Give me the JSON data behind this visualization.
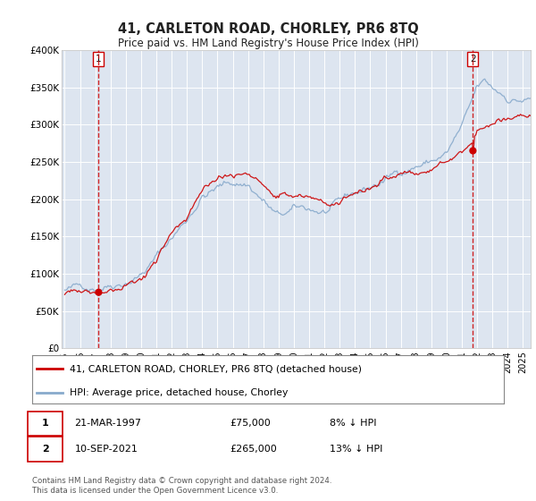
{
  "title": "41, CARLETON ROAD, CHORLEY, PR6 8TQ",
  "subtitle": "Price paid vs. HM Land Registry's House Price Index (HPI)",
  "ylim": [
    0,
    400000
  ],
  "yticks": [
    0,
    50000,
    100000,
    150000,
    200000,
    250000,
    300000,
    350000,
    400000
  ],
  "ytick_labels": [
    "£0",
    "£50K",
    "£100K",
    "£150K",
    "£200K",
    "£250K",
    "£300K",
    "£350K",
    "£400K"
  ],
  "date_start": 1995.0,
  "date_end": 2025.5,
  "sale1_date": 1997.22,
  "sale1_price": 75000,
  "sale2_date": 2021.72,
  "sale2_price": 265000,
  "legend_red": "41, CARLETON ROAD, CHORLEY, PR6 8TQ (detached house)",
  "legend_blue": "HPI: Average price, detached house, Chorley",
  "footnote": "Contains HM Land Registry data © Crown copyright and database right 2024.\nThis data is licensed under the Open Government Licence v3.0.",
  "bg_color": "#dde5f0",
  "grid_color": "#ffffff",
  "red_line_color": "#cc0000",
  "blue_line_color": "#88aacc",
  "fig_bg_color": "#f5f5f5",
  "seed": 42,
  "hpi_keypoints_t": [
    1995,
    1996,
    1997,
    1998,
    1999,
    2000,
    2001,
    2002,
    2003,
    2004,
    2005,
    2006,
    2007,
    2008,
    2009,
    2010,
    2011,
    2012,
    2013,
    2014,
    2015,
    2016,
    2017,
    2018,
    2019,
    2020,
    2021,
    2021.5,
    2022,
    2022.5,
    2023,
    2024,
    2025
  ],
  "hpi_keypoints_v": [
    78000,
    80000,
    85000,
    95000,
    105000,
    118000,
    140000,
    165000,
    190000,
    225000,
    235000,
    240000,
    240000,
    220000,
    195000,
    200000,
    198000,
    195000,
    200000,
    210000,
    218000,
    228000,
    240000,
    252000,
    258000,
    268000,
    300000,
    320000,
    345000,
    350000,
    340000,
    330000,
    330000
  ],
  "prop_keypoints_t": [
    1995,
    1996,
    1997.22,
    1998,
    1999,
    2000,
    2001,
    2002,
    2003,
    2004,
    2005,
    2006,
    2007,
    2008,
    2009,
    2010,
    2011,
    2012,
    2013,
    2014,
    2015,
    2016,
    2017,
    2018,
    2019,
    2020,
    2021.72,
    2022,
    2023,
    2024,
    2025
  ],
  "prop_keypoints_v": [
    72000,
    74000,
    75000,
    87000,
    97000,
    108000,
    130000,
    155000,
    178000,
    210000,
    218000,
    223000,
    222000,
    203000,
    183000,
    187000,
    185000,
    183000,
    187000,
    196000,
    203000,
    213000,
    224000,
    235000,
    242000,
    252000,
    265000,
    278000,
    285000,
    293000,
    290000
  ]
}
